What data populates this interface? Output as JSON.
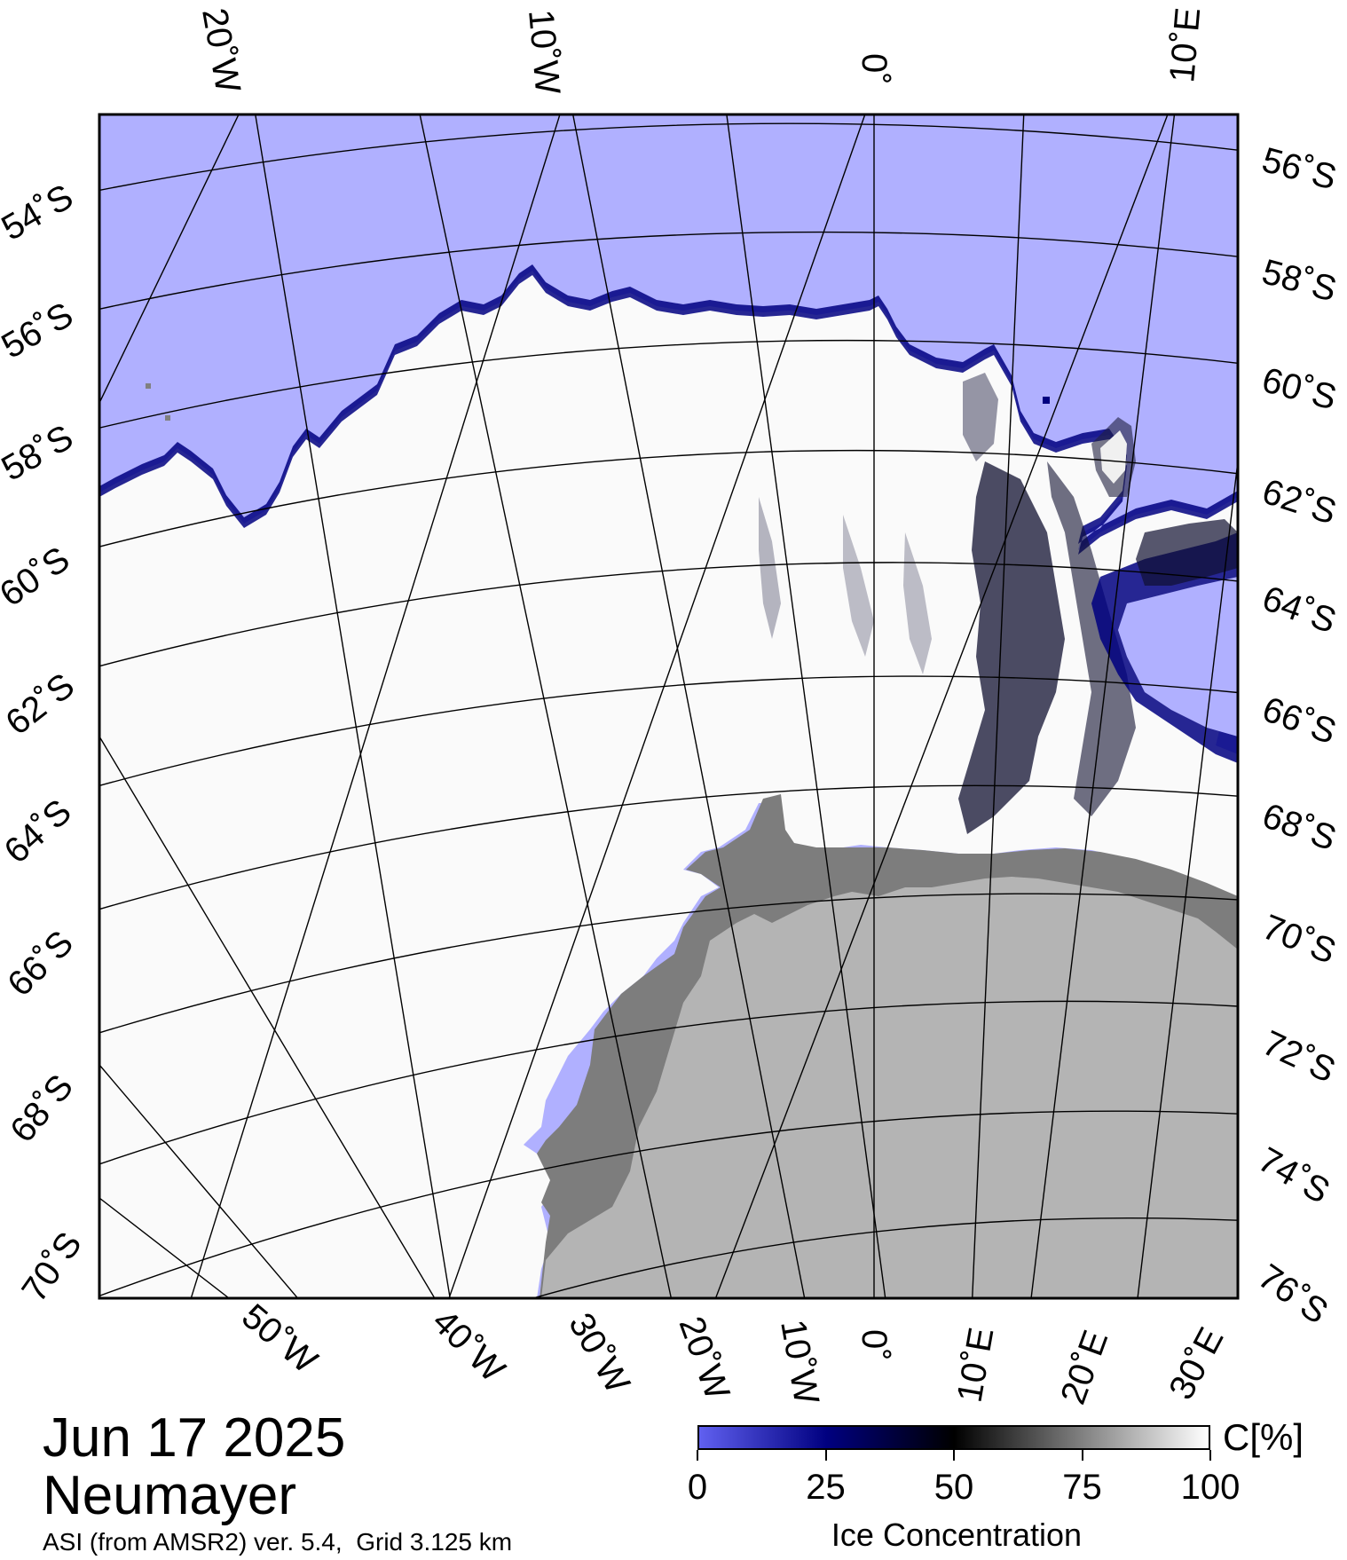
{
  "map": {
    "colors": {
      "ocean": "#b0b0ff",
      "ice_high": "#ffffff",
      "ice_mid": "#000000",
      "ice_low": "#000080",
      "land": "#b4b4b4",
      "ice_shelf": "#7d7d7d",
      "grid": "#000000"
    },
    "longitude_labels_top": [
      "20˚W",
      "10˚W",
      "0˚",
      "10˚E"
    ],
    "longitude_labels_bottom": [
      "50˚W",
      "40˚W",
      "30˚W",
      "20˚W",
      "10˚W",
      "0˚",
      "10˚E",
      "20˚E",
      "30˚E"
    ],
    "latitude_labels_left": [
      "54˚S",
      "56˚S",
      "58˚S",
      "60˚S",
      "62˚S",
      "64˚S",
      "66˚S",
      "68˚S",
      "70˚S"
    ],
    "latitude_labels_right": [
      "56˚S",
      "58˚S",
      "60˚S",
      "62˚S",
      "64˚S",
      "66˚S",
      "68˚S",
      "70˚S",
      "72˚S",
      "74˚S",
      "76˚S"
    ]
  },
  "footer": {
    "date": "Jun 17 2025",
    "station": "Neumayer",
    "source": "ASI (from AMSR2) ver. 5.4,  Grid 3.125 km"
  },
  "colorbar": {
    "unit": "C[%]",
    "title": "Ice Concentration",
    "ticks": [
      "0",
      "25",
      "50",
      "75",
      "100"
    ],
    "tick_values": [
      0,
      25,
      50,
      75,
      100
    ],
    "stops": [
      {
        "value": 0,
        "color": "#6060f0"
      },
      {
        "value": 25,
        "color": "#000080"
      },
      {
        "value": 50,
        "color": "#000000"
      },
      {
        "value": 100,
        "color": "#ffffff"
      }
    ]
  }
}
